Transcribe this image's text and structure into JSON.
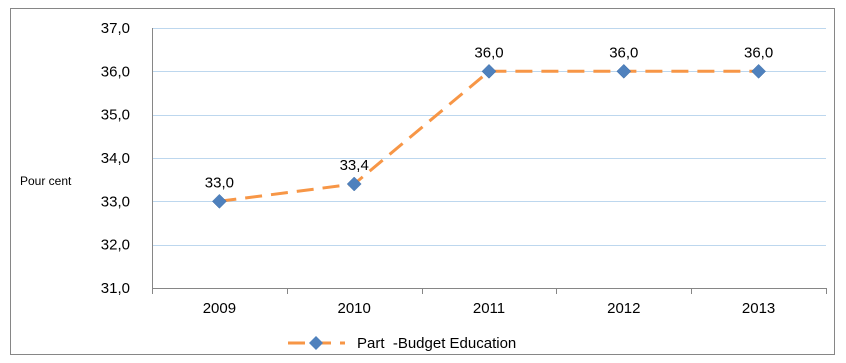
{
  "chart_data": {
    "type": "line",
    "categories": [
      "2009",
      "2010",
      "2011",
      "2012",
      "2013"
    ],
    "series": [
      {
        "name": "Part  -Budget Education",
        "values": [
          33.0,
          33.4,
          36.0,
          36.0,
          36.0
        ],
        "data_labels": [
          "33,0",
          "33,4",
          "36,0",
          "36,0",
          "36,0"
        ],
        "color": "#F79646",
        "marker_color": "#4F81BD",
        "line_style": "dashed",
        "marker": "diamond"
      }
    ],
    "ylabel": "Pour cent",
    "ylim": [
      31.0,
      37.0
    ],
    "y_ticks": [
      31.0,
      32.0,
      33.0,
      34.0,
      35.0,
      36.0,
      37.0
    ],
    "y_tick_labels": [
      "31,0",
      "32,0",
      "33,0",
      "34,0",
      "35,0",
      "36,0",
      "37,0"
    ],
    "grid": true,
    "grid_color": "#BDD7EE",
    "legend_position": "bottom"
  }
}
